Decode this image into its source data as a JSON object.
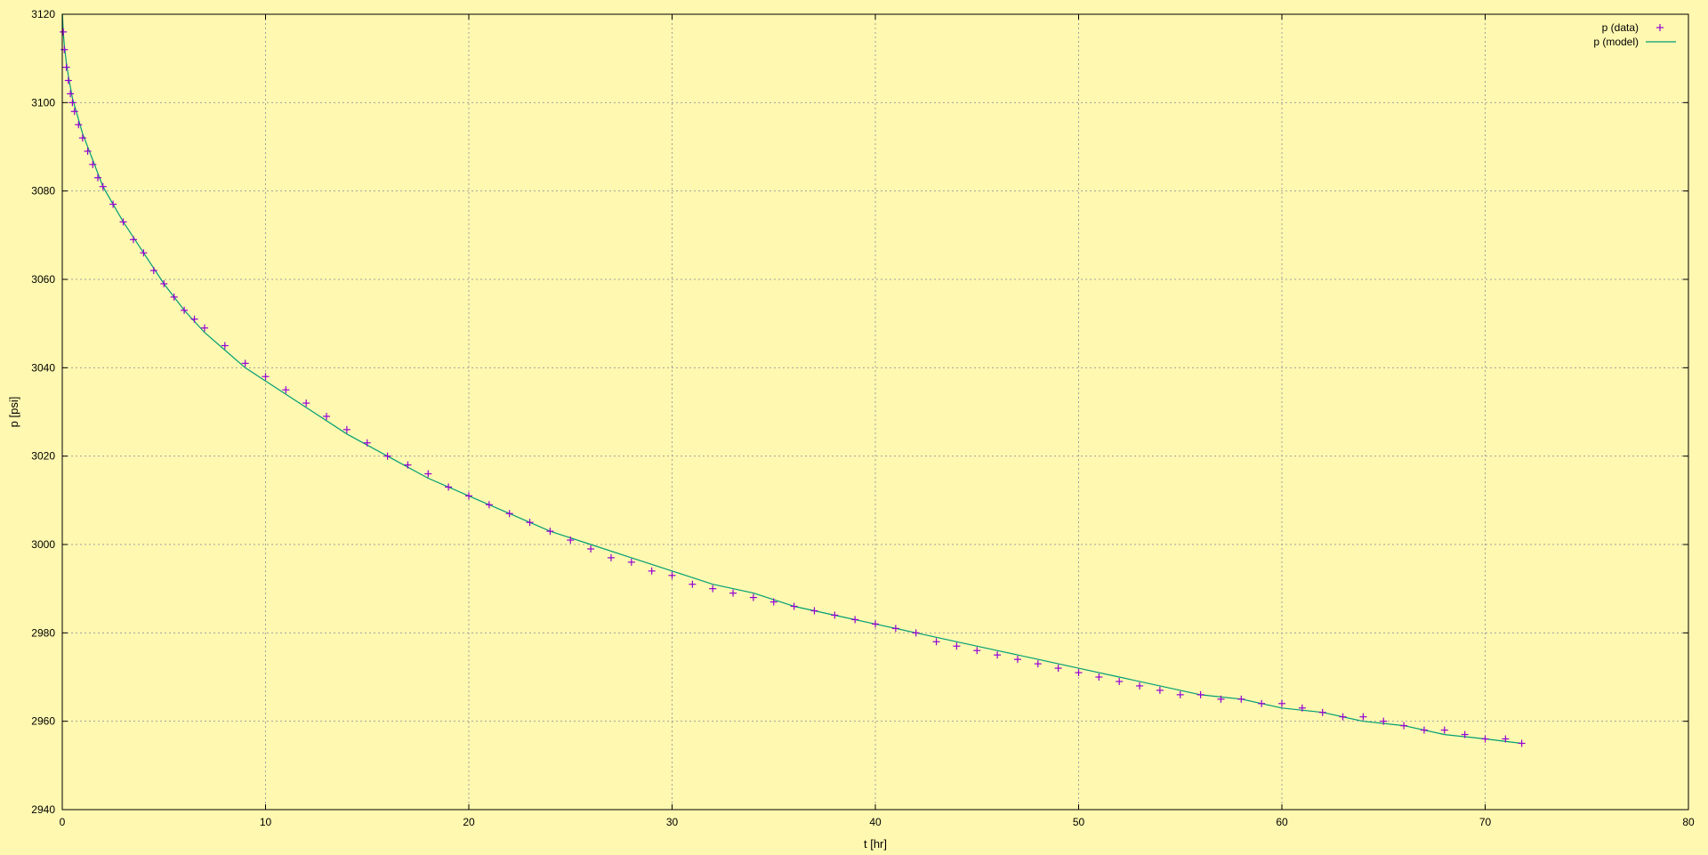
{
  "chart_data": {
    "type": "scatter",
    "xlabel": "t [hr]",
    "ylabel": "p [psi]",
    "xlim": [
      0,
      80
    ],
    "ylim": [
      2940,
      3120
    ],
    "xticks": [
      0,
      10,
      20,
      30,
      40,
      50,
      60,
      70,
      80
    ],
    "yticks": [
      2940,
      2960,
      2980,
      3000,
      3020,
      3040,
      3060,
      3080,
      3100,
      3120
    ],
    "grid": true,
    "legend_position": "top-right",
    "background_color": "#fff8b0",
    "series": [
      {
        "name": "p (data)",
        "style": "points",
        "marker": "plus",
        "color": "#9400d3",
        "x": [
          0.05,
          0.1,
          0.2,
          0.3,
          0.4,
          0.5,
          0.6,
          0.8,
          1.0,
          1.25,
          1.5,
          1.75,
          2.0,
          2.5,
          3.0,
          3.5,
          4.0,
          4.5,
          5.0,
          5.5,
          6.0,
          6.5,
          7.0,
          8.0,
          9.0,
          10.0,
          11.0,
          12.0,
          13.0,
          14.0,
          15.0,
          16.0,
          17.0,
          18.0,
          19.0,
          20.0,
          21.0,
          22.0,
          23.0,
          24.0,
          25.0,
          26.0,
          27.0,
          28.0,
          29.0,
          30.0,
          31.0,
          32.0,
          33.0,
          34.0,
          35.0,
          36.0,
          37.0,
          38.0,
          39.0,
          40.0,
          41.0,
          42.0,
          43.0,
          44.0,
          45.0,
          46.0,
          47.0,
          48.0,
          49.0,
          50.0,
          51.0,
          52.0,
          53.0,
          54.0,
          55.0,
          56.0,
          57.0,
          58.0,
          59.0,
          60.0,
          61.0,
          62.0,
          63.0,
          64.0,
          65.0,
          66.0,
          67.0,
          68.0,
          69.0,
          70.0,
          71.0,
          71.8
        ],
        "y": [
          3116,
          3112,
          3108,
          3105,
          3102,
          3100,
          3098,
          3095,
          3092,
          3089,
          3086,
          3083,
          3081,
          3077,
          3073,
          3069,
          3066,
          3062,
          3059,
          3056,
          3053,
          3051,
          3049,
          3045,
          3041,
          3038,
          3035,
          3032,
          3029,
          3026,
          3023,
          3020,
          3018,
          3016,
          3013,
          3011,
          3009,
          3007,
          3005,
          3003,
          3001,
          2999,
          2997,
          2996,
          2994,
          2993,
          2991,
          2990,
          2989,
          2988,
          2987,
          2986,
          2985,
          2984,
          2983,
          2982,
          2981,
          2980,
          2978,
          2977,
          2976,
          2975,
          2974,
          2973,
          2972,
          2971,
          2970,
          2969,
          2968,
          2967,
          2966,
          2966,
          2965,
          2965,
          2964,
          2964,
          2963,
          2962,
          2961,
          2961,
          2960,
          2959,
          2958,
          2958,
          2957,
          2956,
          2956,
          2955
        ]
      },
      {
        "name": "p (model)",
        "style": "line",
        "color": "#009e73",
        "x": [
          0.01,
          0.05,
          0.1,
          0.2,
          0.3,
          0.5,
          0.75,
          1.0,
          1.5,
          2.0,
          2.5,
          3.0,
          4.0,
          5.0,
          6.0,
          7.0,
          8.0,
          9.0,
          10.0,
          12.0,
          14.0,
          16.0,
          18.0,
          20.0,
          22.0,
          24.0,
          26.0,
          28.0,
          30.0,
          32.0,
          34.0,
          36.0,
          38.0,
          40.0,
          42.0,
          44.0,
          46.0,
          48.0,
          50.0,
          52.0,
          54.0,
          56.0,
          58.0,
          60.0,
          62.0,
          64.0,
          66.0,
          68.0,
          70.0,
          71.8
        ],
        "y": [
          3120,
          3116,
          3113,
          3109,
          3106,
          3101,
          3097,
          3093,
          3087,
          3081,
          3077,
          3073,
          3066,
          3059,
          3053,
          3048,
          3044,
          3040,
          3037,
          3031,
          3025,
          3020,
          3015,
          3011,
          3007,
          3003,
          3000,
          2997,
          2994,
          2991,
          2989,
          2986,
          2984,
          2982,
          2980,
          2978,
          2976,
          2974,
          2972,
          2970,
          2968,
          2966,
          2965,
          2963,
          2962,
          2960,
          2959,
          2957,
          2956,
          2955
        ]
      }
    ]
  }
}
